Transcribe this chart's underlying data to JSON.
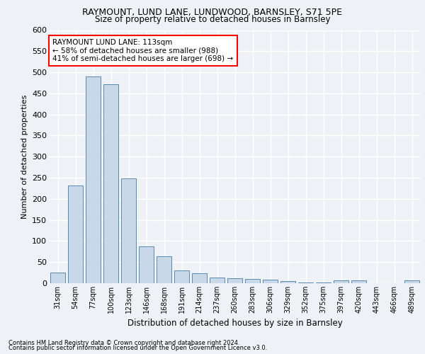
{
  "title1": "RAYMOUNT, LUND LANE, LUNDWOOD, BARNSLEY, S71 5PE",
  "title2": "Size of property relative to detached houses in Barnsley",
  "xlabel": "Distribution of detached houses by size in Barnsley",
  "ylabel": "Number of detached properties",
  "footnote1": "Contains HM Land Registry data © Crown copyright and database right 2024.",
  "footnote2": "Contains public sector information licensed under the Open Government Licence v3.0.",
  "annotation_title": "RAYMOUNT LUND LANE: 113sqm",
  "annotation_line1": "← 58% of detached houses are smaller (988)",
  "annotation_line2": "41% of semi-detached houses are larger (698) →",
  "bar_color": "#c8d8e8",
  "bar_edge_color": "#5a8ab0",
  "highlight_bar_index": 3,
  "categories": [
    "31sqm",
    "54sqm",
    "77sqm",
    "100sqm",
    "123sqm",
    "146sqm",
    "168sqm",
    "191sqm",
    "214sqm",
    "237sqm",
    "260sqm",
    "283sqm",
    "306sqm",
    "329sqm",
    "352sqm",
    "375sqm",
    "397sqm",
    "420sqm",
    "443sqm",
    "466sqm",
    "489sqm"
  ],
  "values": [
    26,
    232,
    490,
    471,
    249,
    88,
    63,
    31,
    24,
    13,
    11,
    10,
    8,
    5,
    1,
    1,
    7,
    7,
    0,
    0,
    6
  ],
  "ylim": [
    0,
    600
  ],
  "yticks": [
    0,
    50,
    100,
    150,
    200,
    250,
    300,
    350,
    400,
    450,
    500,
    550,
    600
  ],
  "annotation_box_color": "white",
  "annotation_box_edge_color": "red",
  "background_color": "#eef2f7",
  "grid_color": "white"
}
